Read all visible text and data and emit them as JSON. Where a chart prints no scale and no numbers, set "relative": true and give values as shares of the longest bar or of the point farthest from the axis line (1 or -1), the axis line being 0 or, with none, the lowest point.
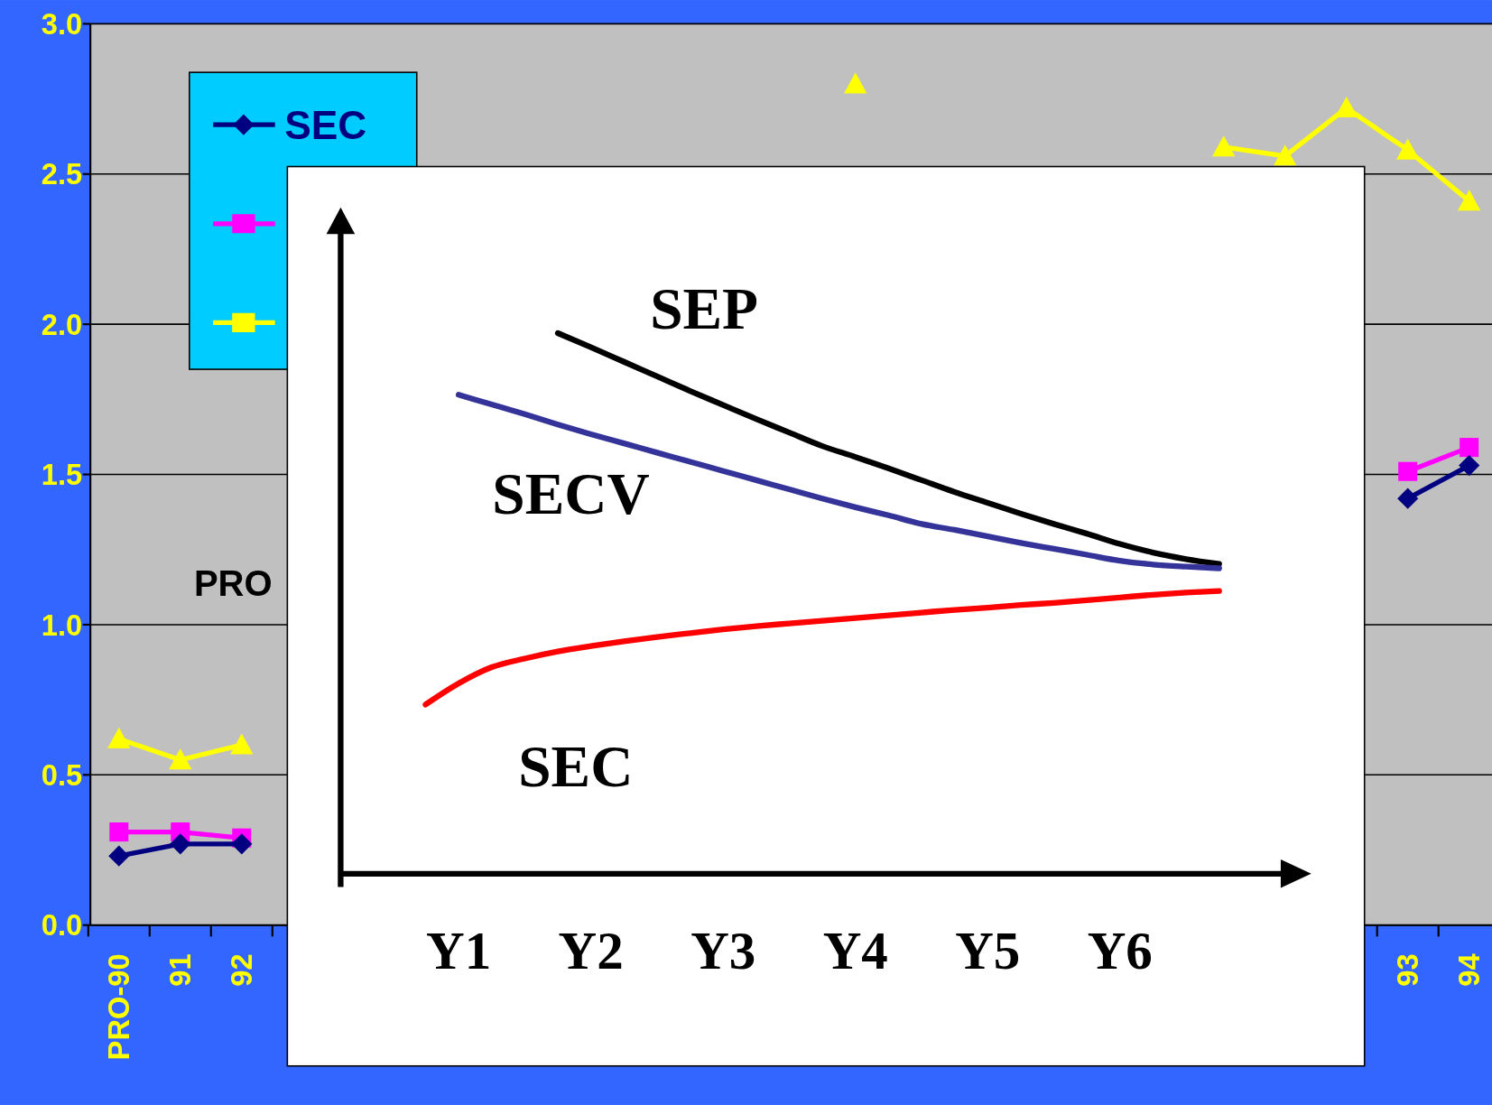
{
  "chart_data": [
    {
      "type": "line",
      "categories": [
        "PRO-90",
        "91",
        "92",
        null,
        null,
        null,
        null,
        null,
        null,
        null,
        null,
        null,
        null,
        null,
        null,
        null,
        null,
        null,
        null,
        null,
        null,
        "93",
        "94"
      ],
      "series": [
        {
          "name": "SEC",
          "color": "#000080",
          "marker": "diamond",
          "values": [
            0.23,
            0.27,
            0.27,
            null,
            null,
            null,
            null,
            null,
            null,
            null,
            null,
            null,
            null,
            null,
            null,
            null,
            null,
            null,
            null,
            null,
            null,
            1.42,
            1.53
          ]
        },
        {
          "color": "#ff00ff",
          "marker": "square",
          "values": [
            0.31,
            0.31,
            0.29,
            null,
            null,
            null,
            null,
            null,
            null,
            null,
            null,
            null,
            null,
            null,
            null,
            null,
            null,
            null,
            null,
            null,
            null,
            1.51,
            1.59
          ]
        },
        {
          "color": "#ffff00",
          "marker": "triangle",
          "values": [
            0.62,
            0.55,
            0.6,
            null,
            null,
            null,
            null,
            null,
            null,
            null,
            null,
            null,
            2.8,
            null,
            null,
            null,
            null,
            null,
            2.59,
            2.56,
            2.72,
            2.58,
            2.41
          ]
        }
      ],
      "ylim": [
        0,
        3
      ],
      "yticks": [
        {
          "value": 0,
          "label": "0.0"
        },
        {
          "value": 0.5,
          "label": "0.5"
        },
        {
          "value": 1,
          "label": "1.0"
        },
        {
          "value": 1.5,
          "label": "1.5"
        },
        {
          "value": 2,
          "label": "2.0"
        },
        {
          "value": 2.5,
          "label": "2.5"
        },
        {
          "value": 3,
          "label": "3.0"
        }
      ],
      "grid": "y",
      "legend": "top left",
      "annotations": [
        "PRO"
      ]
    },
    {
      "type": "line",
      "relative": true,
      "categories": [
        null,
        "Y1",
        null,
        null,
        null,
        "Y2",
        null,
        null,
        null,
        "Y3",
        null,
        null,
        null,
        "Y4",
        null,
        null,
        null,
        "Y5",
        null,
        null,
        null,
        "Y6",
        null,
        null,
        null
      ],
      "series": [
        {
          "name": "SEP",
          "color": "#000000",
          "values": [
            null,
            null,
            null,
            null,
            1.0,
            0.974,
            0.947,
            0.92,
            0.893,
            0.867,
            0.841,
            0.816,
            0.791,
            0.771,
            0.75,
            0.728,
            0.706,
            0.686,
            0.666,
            0.647,
            0.629,
            0.61,
            0.594,
            0.582,
            0.573
          ]
        },
        {
          "name": "SECV",
          "color": "#333399",
          "values": [
            null,
            0.886,
            0.868,
            0.85,
            0.831,
            0.813,
            0.796,
            0.779,
            0.762,
            0.745,
            0.728,
            0.711,
            0.694,
            0.678,
            0.663,
            0.647,
            0.636,
            0.624,
            0.612,
            0.601,
            0.59,
            0.579,
            0.572,
            0.568,
            0.565
          ]
        },
        {
          "name": "SEC",
          "color": "#ff0000",
          "values": [
            0.313,
            0.352,
            0.382,
            0.398,
            0.411,
            0.421,
            0.43,
            0.438,
            0.445,
            0.452,
            0.458,
            0.463,
            0.468,
            0.473,
            0.478,
            0.483,
            0.488,
            0.492,
            0.497,
            0.501,
            0.506,
            0.511,
            0.516,
            0.52,
            0.523
          ]
        }
      ],
      "line_style": "solid"
    }
  ]
}
